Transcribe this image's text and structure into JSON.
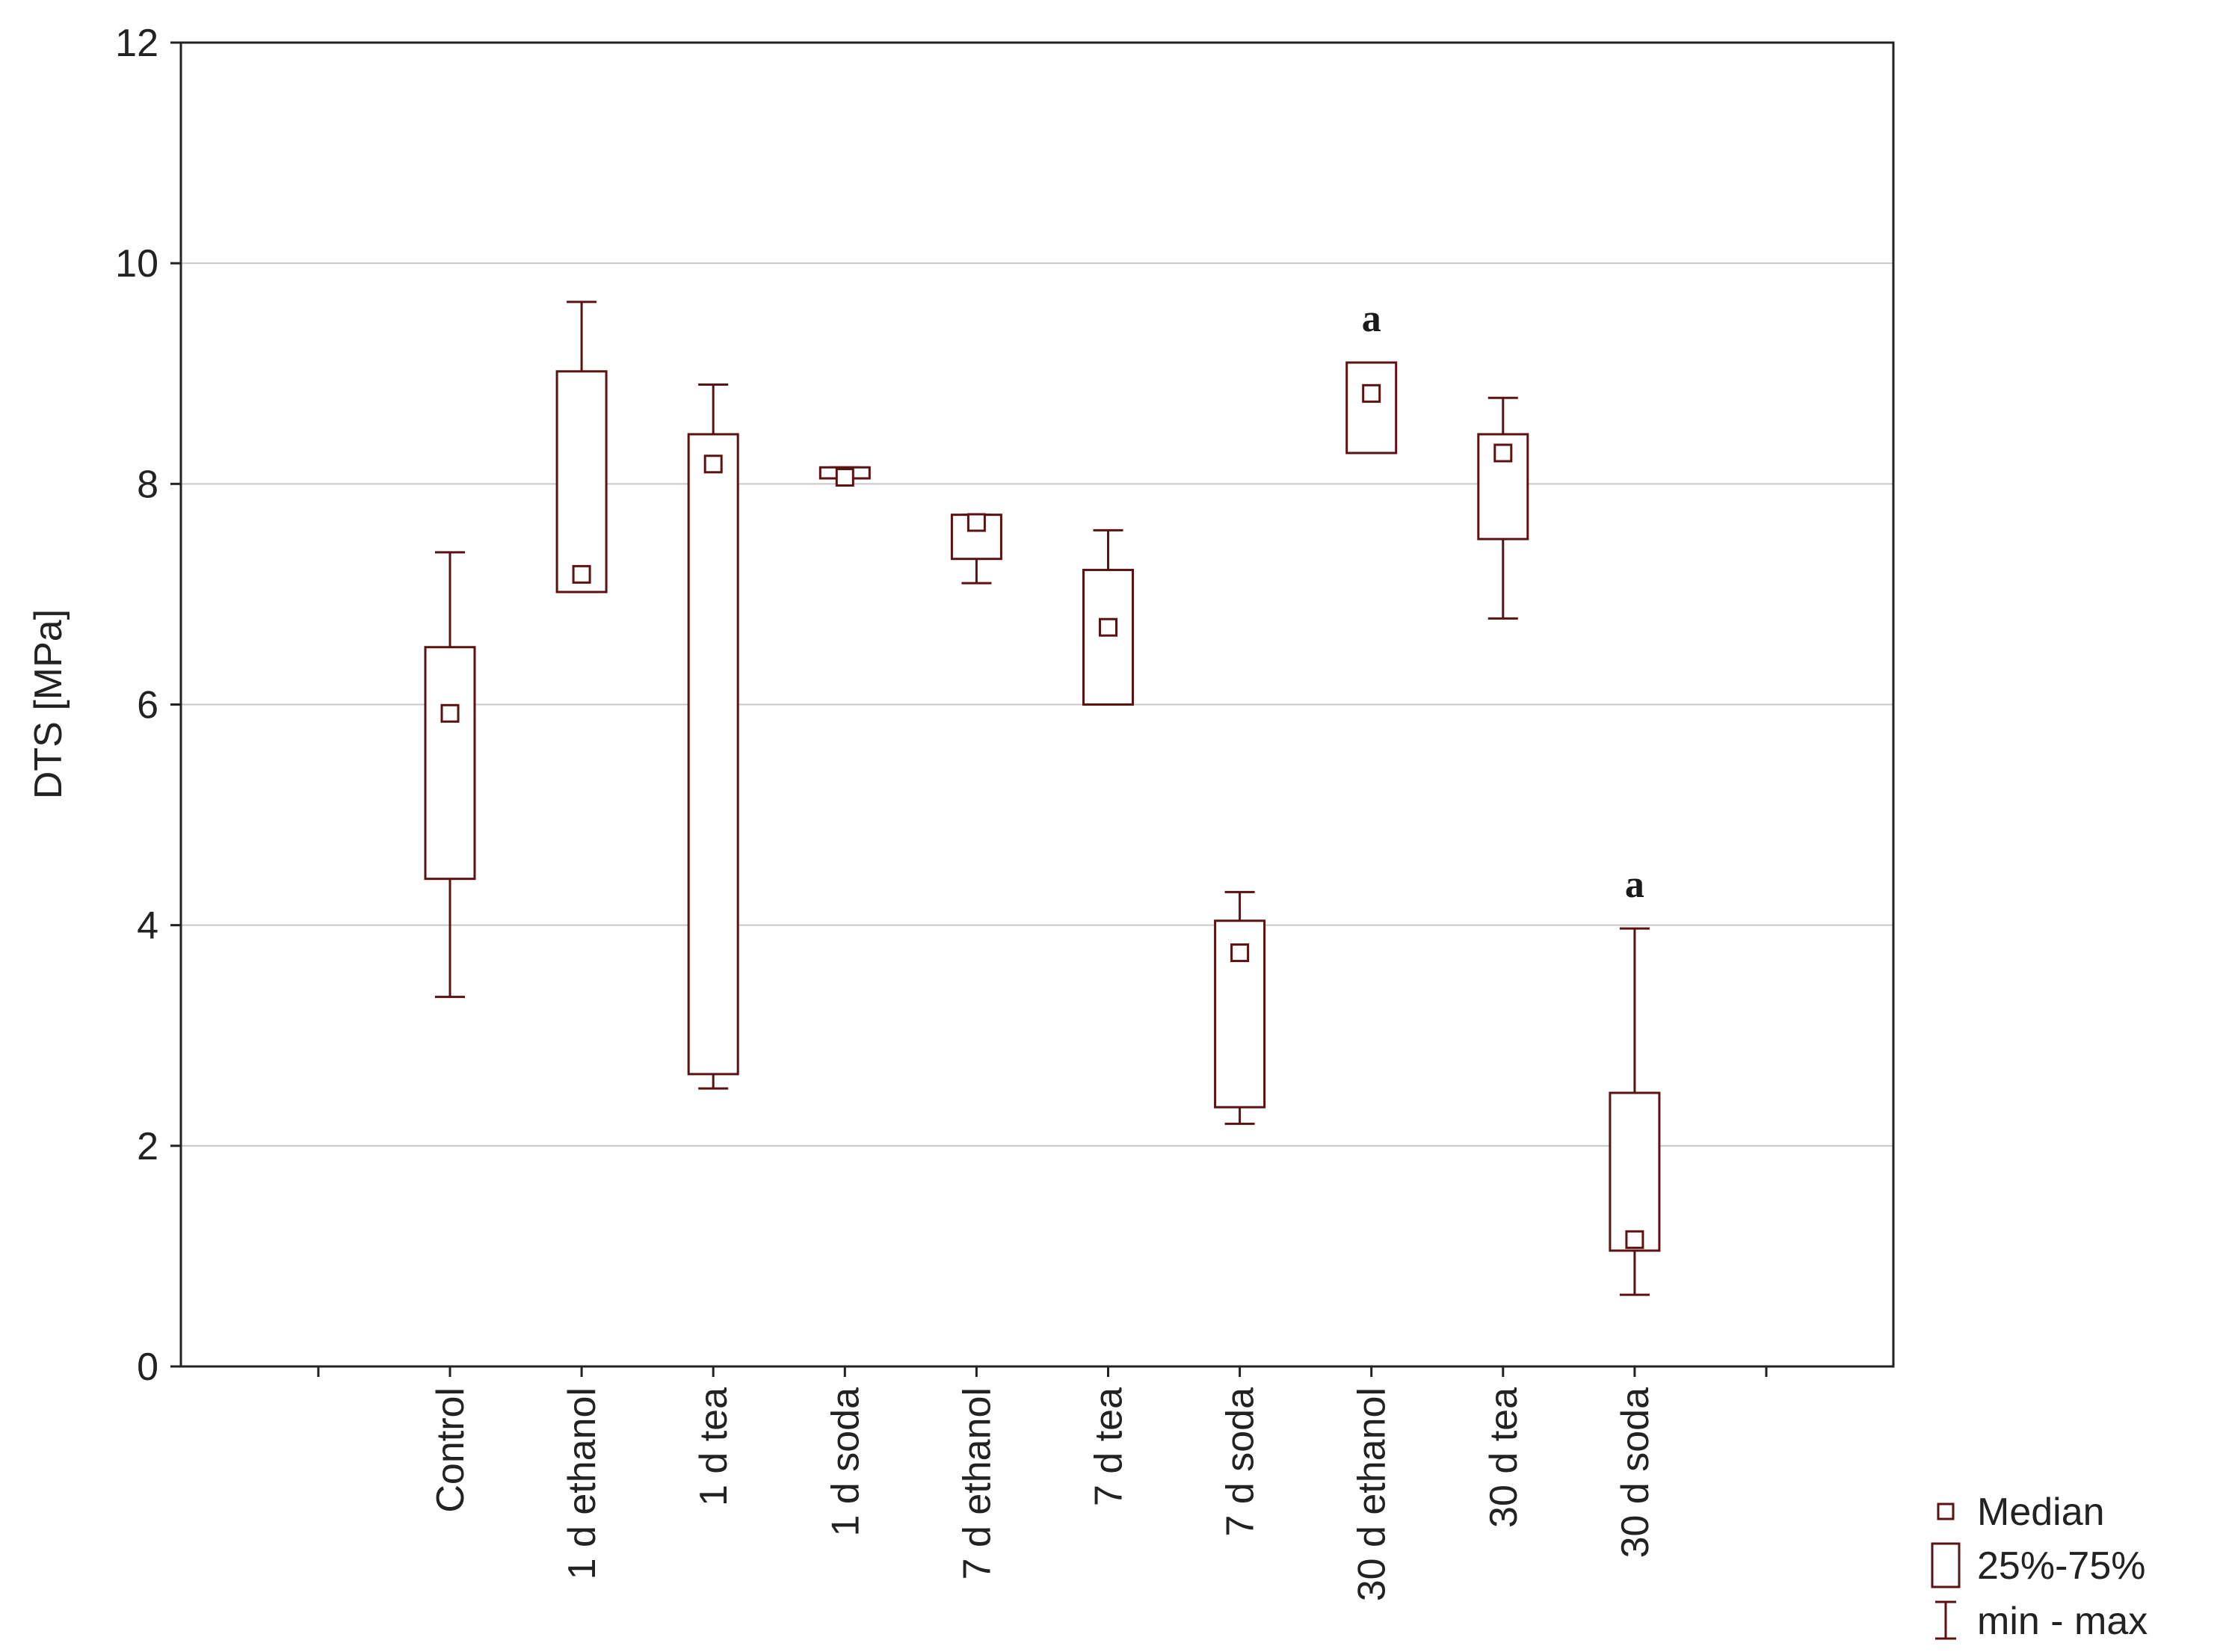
{
  "chart_data": {
    "type": "box",
    "title": "",
    "xlabel": "",
    "ylabel": "DTS [MPa]",
    "ylim": [
      0,
      12
    ],
    "yticks": [
      "0",
      "2",
      "4",
      "6",
      "8",
      "10",
      "12"
    ],
    "grid": true,
    "color": "#5a1212",
    "categories": [
      "Control",
      "1 d ethanol",
      "1 d tea",
      "1 d soda",
      "7 d ethanol",
      "7 d tea",
      "7 d soda",
      "30 d ethanol",
      "30 d tea",
      "30 d soda"
    ],
    "series": [
      {
        "name": "Control",
        "min": 3.35,
        "q1": 4.42,
        "median": 5.92,
        "q3": 6.52,
        "max": 7.38,
        "sig": ""
      },
      {
        "name": "1 d ethanol",
        "min": 7.02,
        "q1": 7.02,
        "median": 7.18,
        "q3": 9.02,
        "max": 9.65,
        "sig": ""
      },
      {
        "name": "1 d tea",
        "min": 2.52,
        "q1": 2.65,
        "median": 8.18,
        "q3": 8.45,
        "max": 8.9,
        "sig": ""
      },
      {
        "name": "1 d soda",
        "min": 8.05,
        "q1": 8.05,
        "median": 8.06,
        "q3": 8.15,
        "max": 8.15,
        "sig": ""
      },
      {
        "name": "7 d ethanol",
        "min": 7.1,
        "q1": 7.32,
        "median": 7.65,
        "q3": 7.72,
        "max": 7.72,
        "sig": ""
      },
      {
        "name": "7 d tea",
        "min": 6.0,
        "q1": 6.0,
        "median": 6.7,
        "q3": 7.22,
        "max": 7.58,
        "sig": ""
      },
      {
        "name": "7 d soda",
        "min": 2.2,
        "q1": 2.35,
        "median": 3.75,
        "q3": 4.04,
        "max": 4.3,
        "sig": ""
      },
      {
        "name": "30 d ethanol",
        "min": 8.28,
        "q1": 8.28,
        "median": 8.82,
        "q3": 9.1,
        "max": 9.1,
        "sig": "a"
      },
      {
        "name": "30 d tea",
        "min": 6.78,
        "q1": 7.5,
        "median": 8.28,
        "q3": 8.45,
        "max": 8.78,
        "sig": ""
      },
      {
        "name": "30 d soda",
        "min": 0.65,
        "q1": 1.05,
        "median": 1.15,
        "q3": 2.48,
        "max": 3.97,
        "sig": "a"
      }
    ],
    "legend": {
      "position": "bottom-right",
      "entries": [
        "Median",
        "25%-75%",
        "min - max"
      ]
    }
  }
}
